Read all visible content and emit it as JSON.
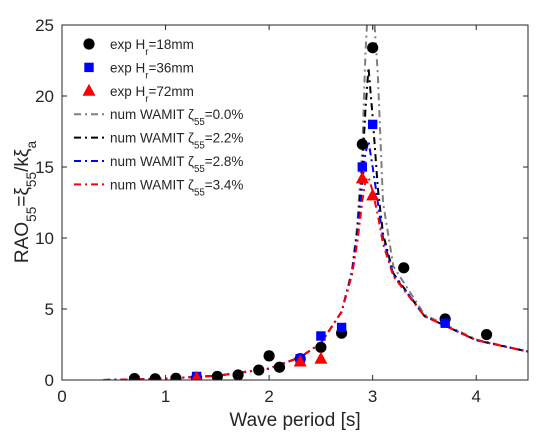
{
  "chart_data": {
    "type": "scatter",
    "title": "",
    "xlabel": "Wave period [s]",
    "ylabel": {
      "parts": [
        {
          "t": "RAO",
          "k": "n"
        },
        {
          "t": "55",
          "k": "sub"
        },
        {
          "t": "=ξ",
          "k": "n"
        },
        {
          "t": "55",
          "k": "sub"
        },
        {
          "t": "/kξ",
          "k": "n"
        },
        {
          "t": "a",
          "k": "sub"
        }
      ]
    },
    "xlim": [
      0,
      4.5
    ],
    "ylim": [
      0,
      25
    ],
    "xticks": [
      "0",
      "1",
      "2",
      "3",
      "4"
    ],
    "yticks": [
      "0",
      "5",
      "10",
      "15",
      "20",
      "25"
    ],
    "grid": false,
    "legend_position": "top-left",
    "series": [
      {
        "name": {
          "parts": [
            {
              "t": "exp H",
              "k": "n"
            },
            {
              "t": "r",
              "k": "sub"
            },
            {
              "t": "=18mm",
              "k": "n"
            }
          ]
        },
        "kind": "marker",
        "marker": "circle",
        "color": "#000000",
        "x": [
          0.7,
          0.9,
          1.1,
          1.3,
          1.5,
          1.7,
          1.9,
          2.0,
          2.1,
          2.3,
          2.5,
          2.7,
          2.9,
          3.0,
          3.3,
          3.7,
          4.1
        ],
        "y": [
          0.1,
          0.08,
          0.12,
          0.15,
          0.25,
          0.35,
          0.7,
          1.7,
          0.9,
          1.5,
          2.3,
          3.3,
          16.6,
          23.4,
          7.9,
          4.3,
          3.2
        ]
      },
      {
        "name": {
          "parts": [
            {
              "t": "exp H",
              "k": "n"
            },
            {
              "t": "r",
              "k": "sub"
            },
            {
              "t": "=36mm",
              "k": "n"
            }
          ]
        },
        "kind": "marker",
        "marker": "square",
        "color": "#0000ff",
        "x": [
          1.3,
          2.3,
          2.5,
          2.7,
          2.9,
          3.0,
          3.7
        ],
        "y": [
          0.25,
          1.5,
          3.1,
          3.7,
          15.0,
          18.0,
          4.0
        ]
      },
      {
        "name": {
          "parts": [
            {
              "t": "exp H",
              "k": "n"
            },
            {
              "t": "r",
              "k": "sub"
            },
            {
              "t": "=72mm",
              "k": "n"
            }
          ]
        },
        "kind": "marker",
        "marker": "triangle",
        "color": "#ff0000",
        "x": [
          1.3,
          2.3,
          2.5,
          2.9,
          3.0
        ],
        "y": [
          0.15,
          1.3,
          1.5,
          14.2,
          13.0
        ]
      },
      {
        "name": {
          "parts": [
            {
              "t": "num WAMIT ζ",
              "k": "n"
            },
            {
              "t": "55",
              "k": "sub"
            },
            {
              "t": "=0.0%",
              "k": "n"
            }
          ]
        },
        "kind": "line",
        "color": "#7f7f7f",
        "x": [
          0.4,
          1.0,
          1.5,
          2.0,
          2.3,
          2.5,
          2.7,
          2.8,
          2.85,
          2.9,
          2.93,
          2.96,
          3.0,
          3.05,
          3.1,
          3.2,
          3.5,
          4.0,
          4.5
        ],
        "y": [
          0.0,
          0.1,
          0.3,
          0.8,
          1.6,
          2.6,
          4.8,
          7.7,
          10.8,
          16.3,
          23.0,
          27.0,
          27.0,
          21.5,
          12.5,
          8.0,
          4.6,
          2.85,
          2.0
        ]
      },
      {
        "name": {
          "parts": [
            {
              "t": "num WAMIT ζ",
              "k": "n"
            },
            {
              "t": "55",
              "k": "sub"
            },
            {
              "t": "=2.2%",
              "k": "n"
            }
          ]
        },
        "kind": "line",
        "color": "#000000",
        "x": [
          0.4,
          1.0,
          1.5,
          2.0,
          2.3,
          2.5,
          2.7,
          2.8,
          2.85,
          2.9,
          2.93,
          2.96,
          3.0,
          3.05,
          3.1,
          3.2,
          3.5,
          4.0,
          4.5
        ],
        "y": [
          0.0,
          0.1,
          0.3,
          0.8,
          1.6,
          2.6,
          4.8,
          7.6,
          10.4,
          15.0,
          19.0,
          22.0,
          18.5,
          13.5,
          10.3,
          7.5,
          4.5,
          2.8,
          2.0
        ]
      },
      {
        "name": {
          "parts": [
            {
              "t": "num WAMIT ζ",
              "k": "n"
            },
            {
              "t": "55",
              "k": "sub"
            },
            {
              "t": "=2.8%",
              "k": "n"
            }
          ]
        },
        "kind": "line",
        "color": "#0000ff",
        "x": [
          0.4,
          1.0,
          1.5,
          2.0,
          2.3,
          2.5,
          2.7,
          2.8,
          2.85,
          2.9,
          2.93,
          2.96,
          3.0,
          3.05,
          3.1,
          3.2,
          3.5,
          4.0,
          4.5
        ],
        "y": [
          0.0,
          0.1,
          0.3,
          0.8,
          1.6,
          2.6,
          4.8,
          7.5,
          10.0,
          13.8,
          16.0,
          16.8,
          15.0,
          12.5,
          10.0,
          7.4,
          4.5,
          2.8,
          2.0
        ]
      },
      {
        "name": {
          "parts": [
            {
              "t": "num WAMIT ζ",
              "k": "n"
            },
            {
              "t": "55",
              "k": "sub"
            },
            {
              "t": "=3.4%",
              "k": "n"
            }
          ]
        },
        "kind": "line",
        "color": "#ff0000",
        "x": [
          0.4,
          1.0,
          1.5,
          2.0,
          2.3,
          2.5,
          2.7,
          2.8,
          2.85,
          2.9,
          2.93,
          2.96,
          3.0,
          3.05,
          3.1,
          3.2,
          3.5,
          4.0,
          4.5
        ],
        "y": [
          0.0,
          0.1,
          0.3,
          0.8,
          1.6,
          2.6,
          4.8,
          7.4,
          9.6,
          12.6,
          14.0,
          14.3,
          13.3,
          11.6,
          9.6,
          7.3,
          4.5,
          2.8,
          2.0
        ]
      }
    ]
  }
}
